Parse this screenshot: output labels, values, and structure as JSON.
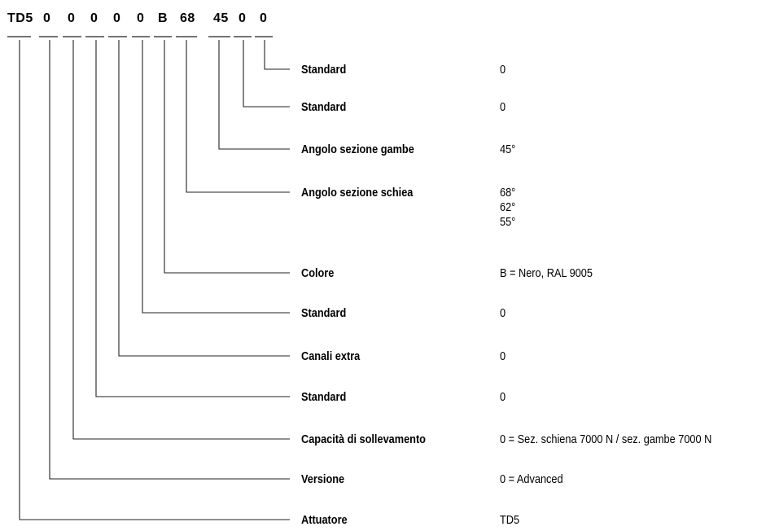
{
  "code": {
    "segments": [
      "TD5",
      "0",
      "0",
      "0",
      "0",
      "0",
      "B",
      "68",
      "45",
      "0",
      "0"
    ]
  },
  "rows": [
    {
      "label": "Standard",
      "values": [
        "0"
      ]
    },
    {
      "label": "Standard",
      "values": [
        "0"
      ]
    },
    {
      "label": "Angolo sezione gambe",
      "values": [
        "45°"
      ]
    },
    {
      "label": "Angolo sezione schiea",
      "values": [
        "68°",
        "62°",
        "55°"
      ]
    },
    {
      "label": "Colore",
      "values": [
        "B = Nero, RAL 9005"
      ]
    },
    {
      "label": "Standard",
      "values": [
        "0"
      ]
    },
    {
      "label": "Canali extra",
      "values": [
        "0"
      ]
    },
    {
      "label": "Standard",
      "values": [
        "0"
      ]
    },
    {
      "label": "Capacità di sollevamento",
      "values": [
        "0 = Sez. schiena 7000 N / sez. gambe 7000 N"
      ]
    },
    {
      "label": "Versione",
      "values": [
        "0 = Advanced"
      ]
    },
    {
      "label": "Attuatore",
      "values": [
        "TD5"
      ]
    }
  ]
}
